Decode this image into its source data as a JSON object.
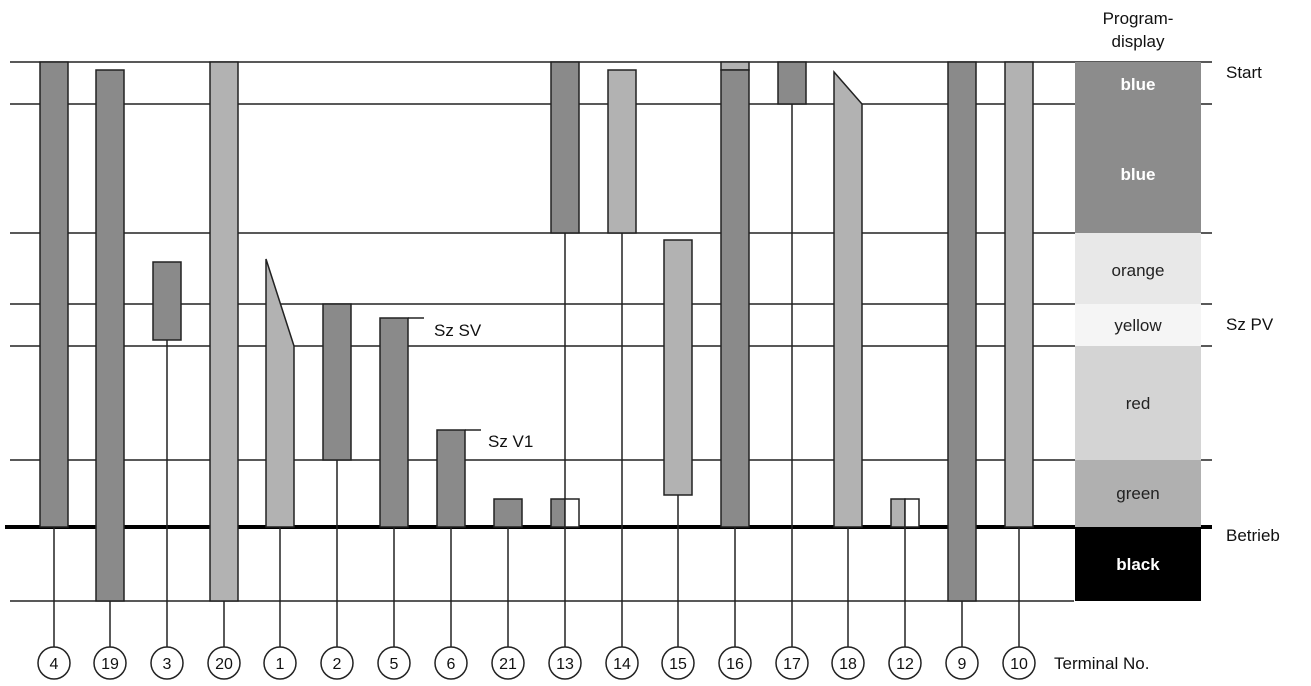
{
  "header": {
    "line1": "Program-",
    "line2": "display"
  },
  "side_labels": {
    "start": "Start",
    "sz_pv": "Sz PV",
    "betrieb": "Betrieb"
  },
  "annotations": {
    "sz_sv": "Sz SV",
    "sz_v1": "Sz V1"
  },
  "terminal_label": "Terminal No.",
  "terminals": [
    "4",
    "19",
    "3",
    "20",
    "1",
    "2",
    "5",
    "6",
    "21",
    "13",
    "14",
    "15",
    "16",
    "17",
    "18",
    "12",
    "9",
    "10"
  ],
  "display_segments": [
    {
      "label": "blue",
      "fill": "#8c8c8c",
      "text_color": "#ffffff"
    },
    {
      "label": "blue",
      "fill": "#8c8c8c",
      "text_color": "#ffffff"
    },
    {
      "label": "orange",
      "fill": "#e8e8e8",
      "text_color": "#222222"
    },
    {
      "label": "yellow",
      "fill": "#f5f5f5",
      "text_color": "#222222"
    },
    {
      "label": "red",
      "fill": "#d4d4d4",
      "text_color": "#222222"
    },
    {
      "label": "green",
      "fill": "#b0b0b0",
      "text_color": "#222222"
    },
    {
      "label": "black",
      "fill": "#000000",
      "text_color": "#ffffff"
    }
  ],
  "colors": {
    "dark_bar": "#8a8a8a",
    "light_bar": "#b2b2b2",
    "line": "#222222"
  }
}
